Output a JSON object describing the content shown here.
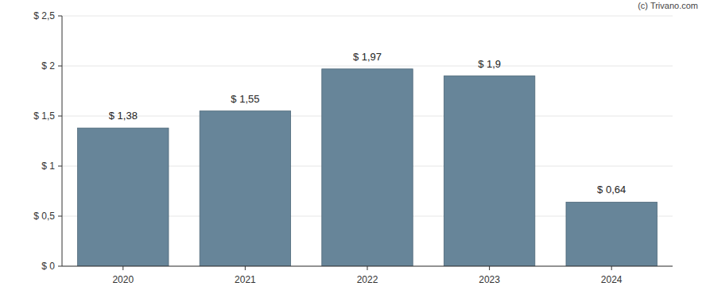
{
  "chart_data": {
    "type": "bar",
    "categories": [
      "2020",
      "2021",
      "2022",
      "2023",
      "2024"
    ],
    "values": [
      1.38,
      1.55,
      1.97,
      1.9,
      0.64
    ],
    "value_labels": [
      "$ 1,38",
      "$ 1,55",
      "$ 1,97",
      "$ 1,9",
      "$ 0,64"
    ],
    "color": "#678599",
    "ylim": [
      0,
      2.5
    ],
    "yticks": [
      {
        "value": 0,
        "label": "$ 0"
      },
      {
        "value": 0.5,
        "label": "$ 0,5"
      },
      {
        "value": 1,
        "label": "$ 1"
      },
      {
        "value": 1.5,
        "label": "$ 1,5"
      },
      {
        "value": 2,
        "label": "$ 2"
      },
      {
        "value": 2.5,
        "label": "$ 2,5"
      }
    ],
    "grid": true,
    "data_labels": true,
    "annotations": [
      "(c) Trivano.com"
    ]
  }
}
